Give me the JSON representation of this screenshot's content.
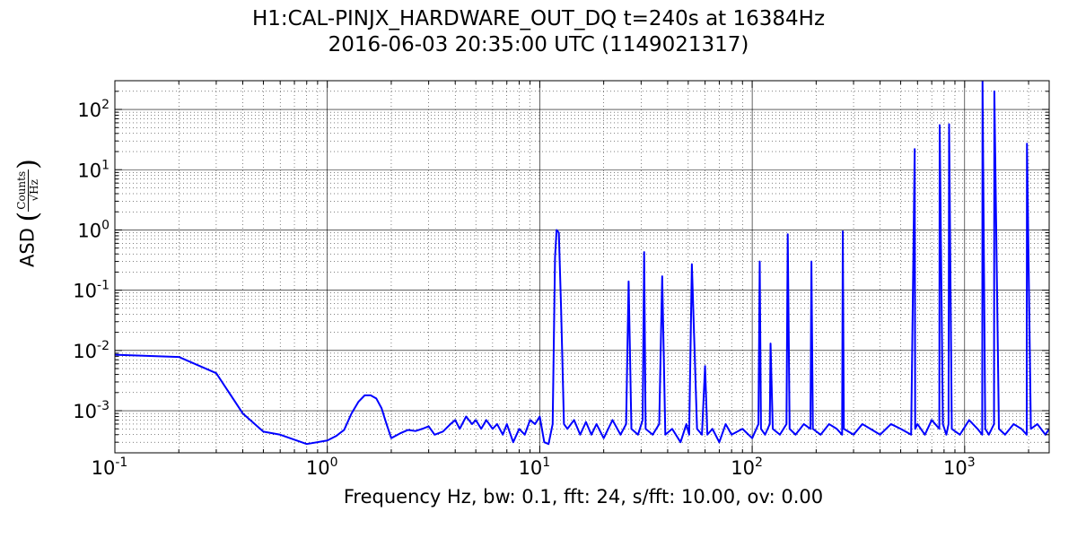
{
  "chart_data": {
    "type": "line",
    "title": "H1:CAL-PINJX_HARDWARE_OUT_DQ t=240s at 16384Hz",
    "subtitle": "2016-06-03 20:35:00 UTC (1149021317)",
    "xlabel": "Frequency Hz,  bw: 0.1, fft: 24, s/fft: 10.00, ov: 0.00",
    "ylabel": "ASD",
    "ylabel_unit_numerator": "Counts",
    "ylabel_unit_denominator": "√Hz",
    "x_scale": "log",
    "y_scale": "log",
    "xlim": [
      0.1,
      2500
    ],
    "ylim": [
      0.0002,
      300
    ],
    "x_ticks": [
      {
        "value": 0.1,
        "base": "10",
        "exp": "-1"
      },
      {
        "value": 1,
        "base": "10",
        "exp": "0"
      },
      {
        "value": 10,
        "base": "10",
        "exp": "1"
      },
      {
        "value": 100,
        "base": "10",
        "exp": "2"
      },
      {
        "value": 1000,
        "base": "10",
        "exp": "3"
      }
    ],
    "y_ticks": [
      {
        "value": 0.001,
        "base": "10",
        "exp": "-3"
      },
      {
        "value": 0.01,
        "base": "10",
        "exp": "-2"
      },
      {
        "value": 0.1,
        "base": "10",
        "exp": "-1"
      },
      {
        "value": 1,
        "base": "10",
        "exp": "0"
      },
      {
        "value": 10,
        "base": "10",
        "exp": "1"
      },
      {
        "value": 100,
        "base": "10",
        "exp": "2"
      }
    ],
    "grid": true,
    "colors": {
      "series": "#0000ff",
      "grid": "#000000",
      "axes": "#000000"
    },
    "series": [
      {
        "x": [
          0.1,
          0.2,
          0.3,
          0.4,
          0.5,
          0.6,
          0.8,
          1.0,
          1.1,
          1.2,
          1.3,
          1.4,
          1.5,
          1.6,
          1.7,
          1.8,
          1.9,
          2.0,
          2.2,
          2.4,
          2.6,
          2.8,
          3.0,
          3.2,
          3.5,
          3.8,
          4.0,
          4.2,
          4.5,
          4.8,
          5.0,
          5.3,
          5.6,
          6.0,
          6.3,
          6.7,
          7.0,
          7.5,
          8.0,
          8.5,
          9.0,
          9.5,
          10.0,
          10.5,
          11.0,
          11.5,
          11.8,
          12.0,
          12.3,
          12.6,
          13.0,
          13.5,
          14.5,
          15.5,
          16.5,
          17.5,
          18.5,
          20.0,
          22.0,
          24.0,
          25.5,
          26.2,
          27.0,
          29.0,
          30.5,
          31.0,
          31.5,
          34.0,
          36.5,
          37.7,
          39.0,
          42.0,
          46.0,
          49.0,
          50.5,
          52.0,
          55.0,
          58.0,
          60.0,
          61.5,
          65.0,
          70.0,
          75.0,
          80.0,
          90.0,
          100.0,
          107.0,
          108.5,
          110.0,
          115.0,
          121.0,
          122.0,
          125.0,
          135.0,
          145.0,
          147.0,
          150.0,
          160.0,
          175.0,
          188.0,
          190.0,
          193.0,
          210.0,
          230.0,
          250.0,
          265.0,
          267.0,
          270.0,
          300.0,
          330.0,
          360.0,
          400.0,
          450.0,
          500.0,
          560.0,
          582.0,
          585.0,
          600.0,
          650.0,
          700.0,
          760.0,
          763.0,
          790.0,
          820.0,
          840.0,
          845.0,
          870.0,
          950.0,
          1050.0,
          1150.0,
          1210.0,
          1214.0,
          1250.0,
          1300.0,
          1375.0,
          1380.0,
          1450.0,
          1550.0,
          1700.0,
          1850.0,
          1960.0,
          1965.0,
          2050.0,
          2200.0,
          2400.0,
          2500.0
        ],
        "y": [
          0.0085,
          0.0078,
          0.0042,
          0.0009,
          0.00045,
          0.0004,
          0.00028,
          0.00032,
          0.00038,
          0.00048,
          0.0009,
          0.0014,
          0.0018,
          0.0018,
          0.0016,
          0.0011,
          0.0006,
          0.00035,
          0.00042,
          0.00048,
          0.00046,
          0.0005,
          0.00055,
          0.0004,
          0.00045,
          0.0006,
          0.0007,
          0.0005,
          0.0008,
          0.0006,
          0.0007,
          0.0005,
          0.0007,
          0.0005,
          0.0006,
          0.0004,
          0.0006,
          0.0003,
          0.0005,
          0.0004,
          0.0007,
          0.0006,
          0.0008,
          0.0003,
          0.00028,
          0.0006,
          0.35,
          1.0,
          0.9,
          0.05,
          0.0006,
          0.0005,
          0.0007,
          0.0004,
          0.00065,
          0.0004,
          0.0006,
          0.00035,
          0.0007,
          0.0004,
          0.0006,
          0.14,
          0.0005,
          0.0004,
          0.0007,
          0.43,
          0.0005,
          0.0004,
          0.0006,
          0.17,
          0.0004,
          0.0005,
          0.0003,
          0.0006,
          0.0004,
          0.27,
          0.0005,
          0.0004,
          0.0055,
          0.0004,
          0.0005,
          0.0003,
          0.0006,
          0.0004,
          0.0005,
          0.00035,
          0.0006,
          0.3,
          0.0005,
          0.0004,
          0.0006,
          0.013,
          0.0005,
          0.0004,
          0.0006,
          0.85,
          0.0005,
          0.0004,
          0.0006,
          0.0005,
          0.3,
          0.0005,
          0.0004,
          0.0006,
          0.0005,
          0.0004,
          0.95,
          0.0005,
          0.0004,
          0.0006,
          0.0005,
          0.0004,
          0.0006,
          0.0005,
          0.0004,
          22.0,
          0.0005,
          0.0006,
          0.0004,
          0.0007,
          0.0005,
          55.0,
          0.0006,
          0.0004,
          0.0006,
          57.0,
          0.0005,
          0.0004,
          0.0007,
          0.0005,
          0.0004,
          300.0,
          0.0005,
          0.0004,
          0.0006,
          200.0,
          0.0005,
          0.0004,
          0.0006,
          0.0005,
          0.0004,
          27.0,
          0.0005,
          0.0006,
          0.0004,
          0.0005
        ]
      }
    ]
  }
}
